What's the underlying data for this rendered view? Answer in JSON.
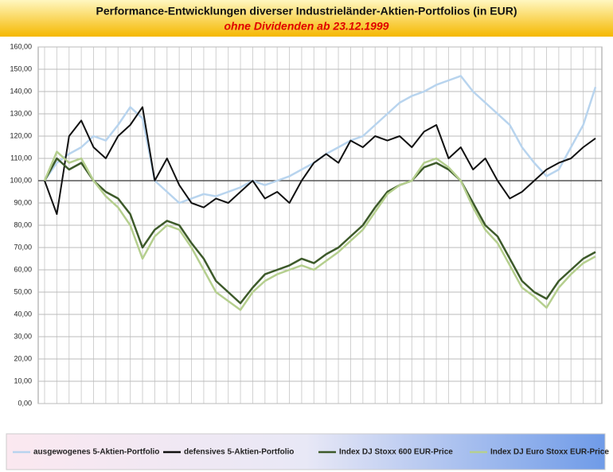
{
  "chart_data": {
    "type": "line",
    "title": "Performance-Entwicklungen diverser Industrieländer-Aktien-Portfolios (in EUR)",
    "subtitle": "ohne Dividenden ab 23.12.1999",
    "categories": [
      null,
      null,
      null,
      null,
      null,
      null,
      null,
      null,
      null,
      null,
      null,
      null,
      null,
      null,
      null,
      null,
      null,
      null,
      null,
      null,
      null,
      null,
      null,
      null,
      null,
      null,
      null,
      null,
      null,
      null,
      null,
      null,
      null,
      null,
      null,
      null,
      null,
      null,
      null,
      null,
      null,
      null,
      null,
      null,
      null,
      null
    ],
    "ylim": [
      0,
      160
    ],
    "yticks": [
      {
        "value": 0,
        "label": "0,00"
      },
      {
        "value": 10,
        "label": "10,00"
      },
      {
        "value": 20,
        "label": "20,00"
      },
      {
        "value": 30,
        "label": "30,00"
      },
      {
        "value": 40,
        "label": "40,00"
      },
      {
        "value": 50,
        "label": "50,00"
      },
      {
        "value": 60,
        "label": "60,00"
      },
      {
        "value": 70,
        "label": "70,00"
      },
      {
        "value": 80,
        "label": "80,00"
      },
      {
        "value": 90,
        "label": "90,00"
      },
      {
        "value": 100,
        "label": "100,00"
      },
      {
        "value": 110,
        "label": "110,00"
      },
      {
        "value": 120,
        "label": "120,00"
      },
      {
        "value": 130,
        "label": "130,00"
      },
      {
        "value": 140,
        "label": "140,00"
      },
      {
        "value": 150,
        "label": "150,00"
      },
      {
        "value": 160,
        "label": "160,00"
      }
    ],
    "x_axis_crossing": 100,
    "grid": true,
    "legend": "bottom",
    "series": [
      {
        "name": "ausgewogenes 5-Aktien-Portfolio",
        "color": "#b8d4ee",
        "values": [
          100,
          108,
          112,
          115,
          120,
          118,
          125,
          133,
          128,
          100,
          95,
          90,
          92,
          94,
          93,
          95,
          97,
          100,
          98,
          100,
          102,
          105,
          108,
          112,
          115,
          118,
          120,
          125,
          130,
          135,
          138,
          140,
          143,
          145,
          147,
          140,
          135,
          130,
          125,
          115,
          108,
          102,
          105,
          115,
          125,
          142
        ]
      },
      {
        "name": "defensives 5-Aktien-Portfolio",
        "color": "#111111",
        "values": [
          100,
          85,
          120,
          127,
          115,
          110,
          120,
          125,
          133,
          100,
          110,
          98,
          90,
          88,
          92,
          90,
          95,
          100,
          92,
          95,
          90,
          100,
          108,
          112,
          108,
          118,
          115,
          120,
          118,
          120,
          115,
          122,
          125,
          110,
          115,
          105,
          110,
          100,
          92,
          95,
          100,
          105,
          108,
          110,
          115,
          119
        ]
      },
      {
        "name": "Index DJ Stoxx 600 EUR-Price",
        "color": "#3d5a2a",
        "values": [
          100,
          110,
          105,
          108,
          100,
          95,
          92,
          85,
          70,
          78,
          82,
          80,
          72,
          65,
          55,
          50,
          45,
          52,
          58,
          60,
          62,
          65,
          63,
          67,
          70,
          75,
          80,
          88,
          95,
          98,
          100,
          106,
          108,
          105,
          100,
          90,
          80,
          75,
          65,
          55,
          50,
          47,
          55,
          60,
          65,
          68
        ]
      },
      {
        "name": "Index DJ Euro Stoxx EUR-Price",
        "color": "#b5cf8e",
        "values": [
          100,
          113,
          108,
          110,
          100,
          93,
          88,
          80,
          65,
          75,
          80,
          78,
          70,
          60,
          50,
          46,
          42,
          50,
          55,
          58,
          60,
          62,
          60,
          64,
          68,
          73,
          78,
          86,
          94,
          98,
          100,
          108,
          110,
          106,
          100,
          88,
          78,
          72,
          62,
          52,
          48,
          43,
          52,
          58,
          63,
          66
        ]
      }
    ]
  }
}
